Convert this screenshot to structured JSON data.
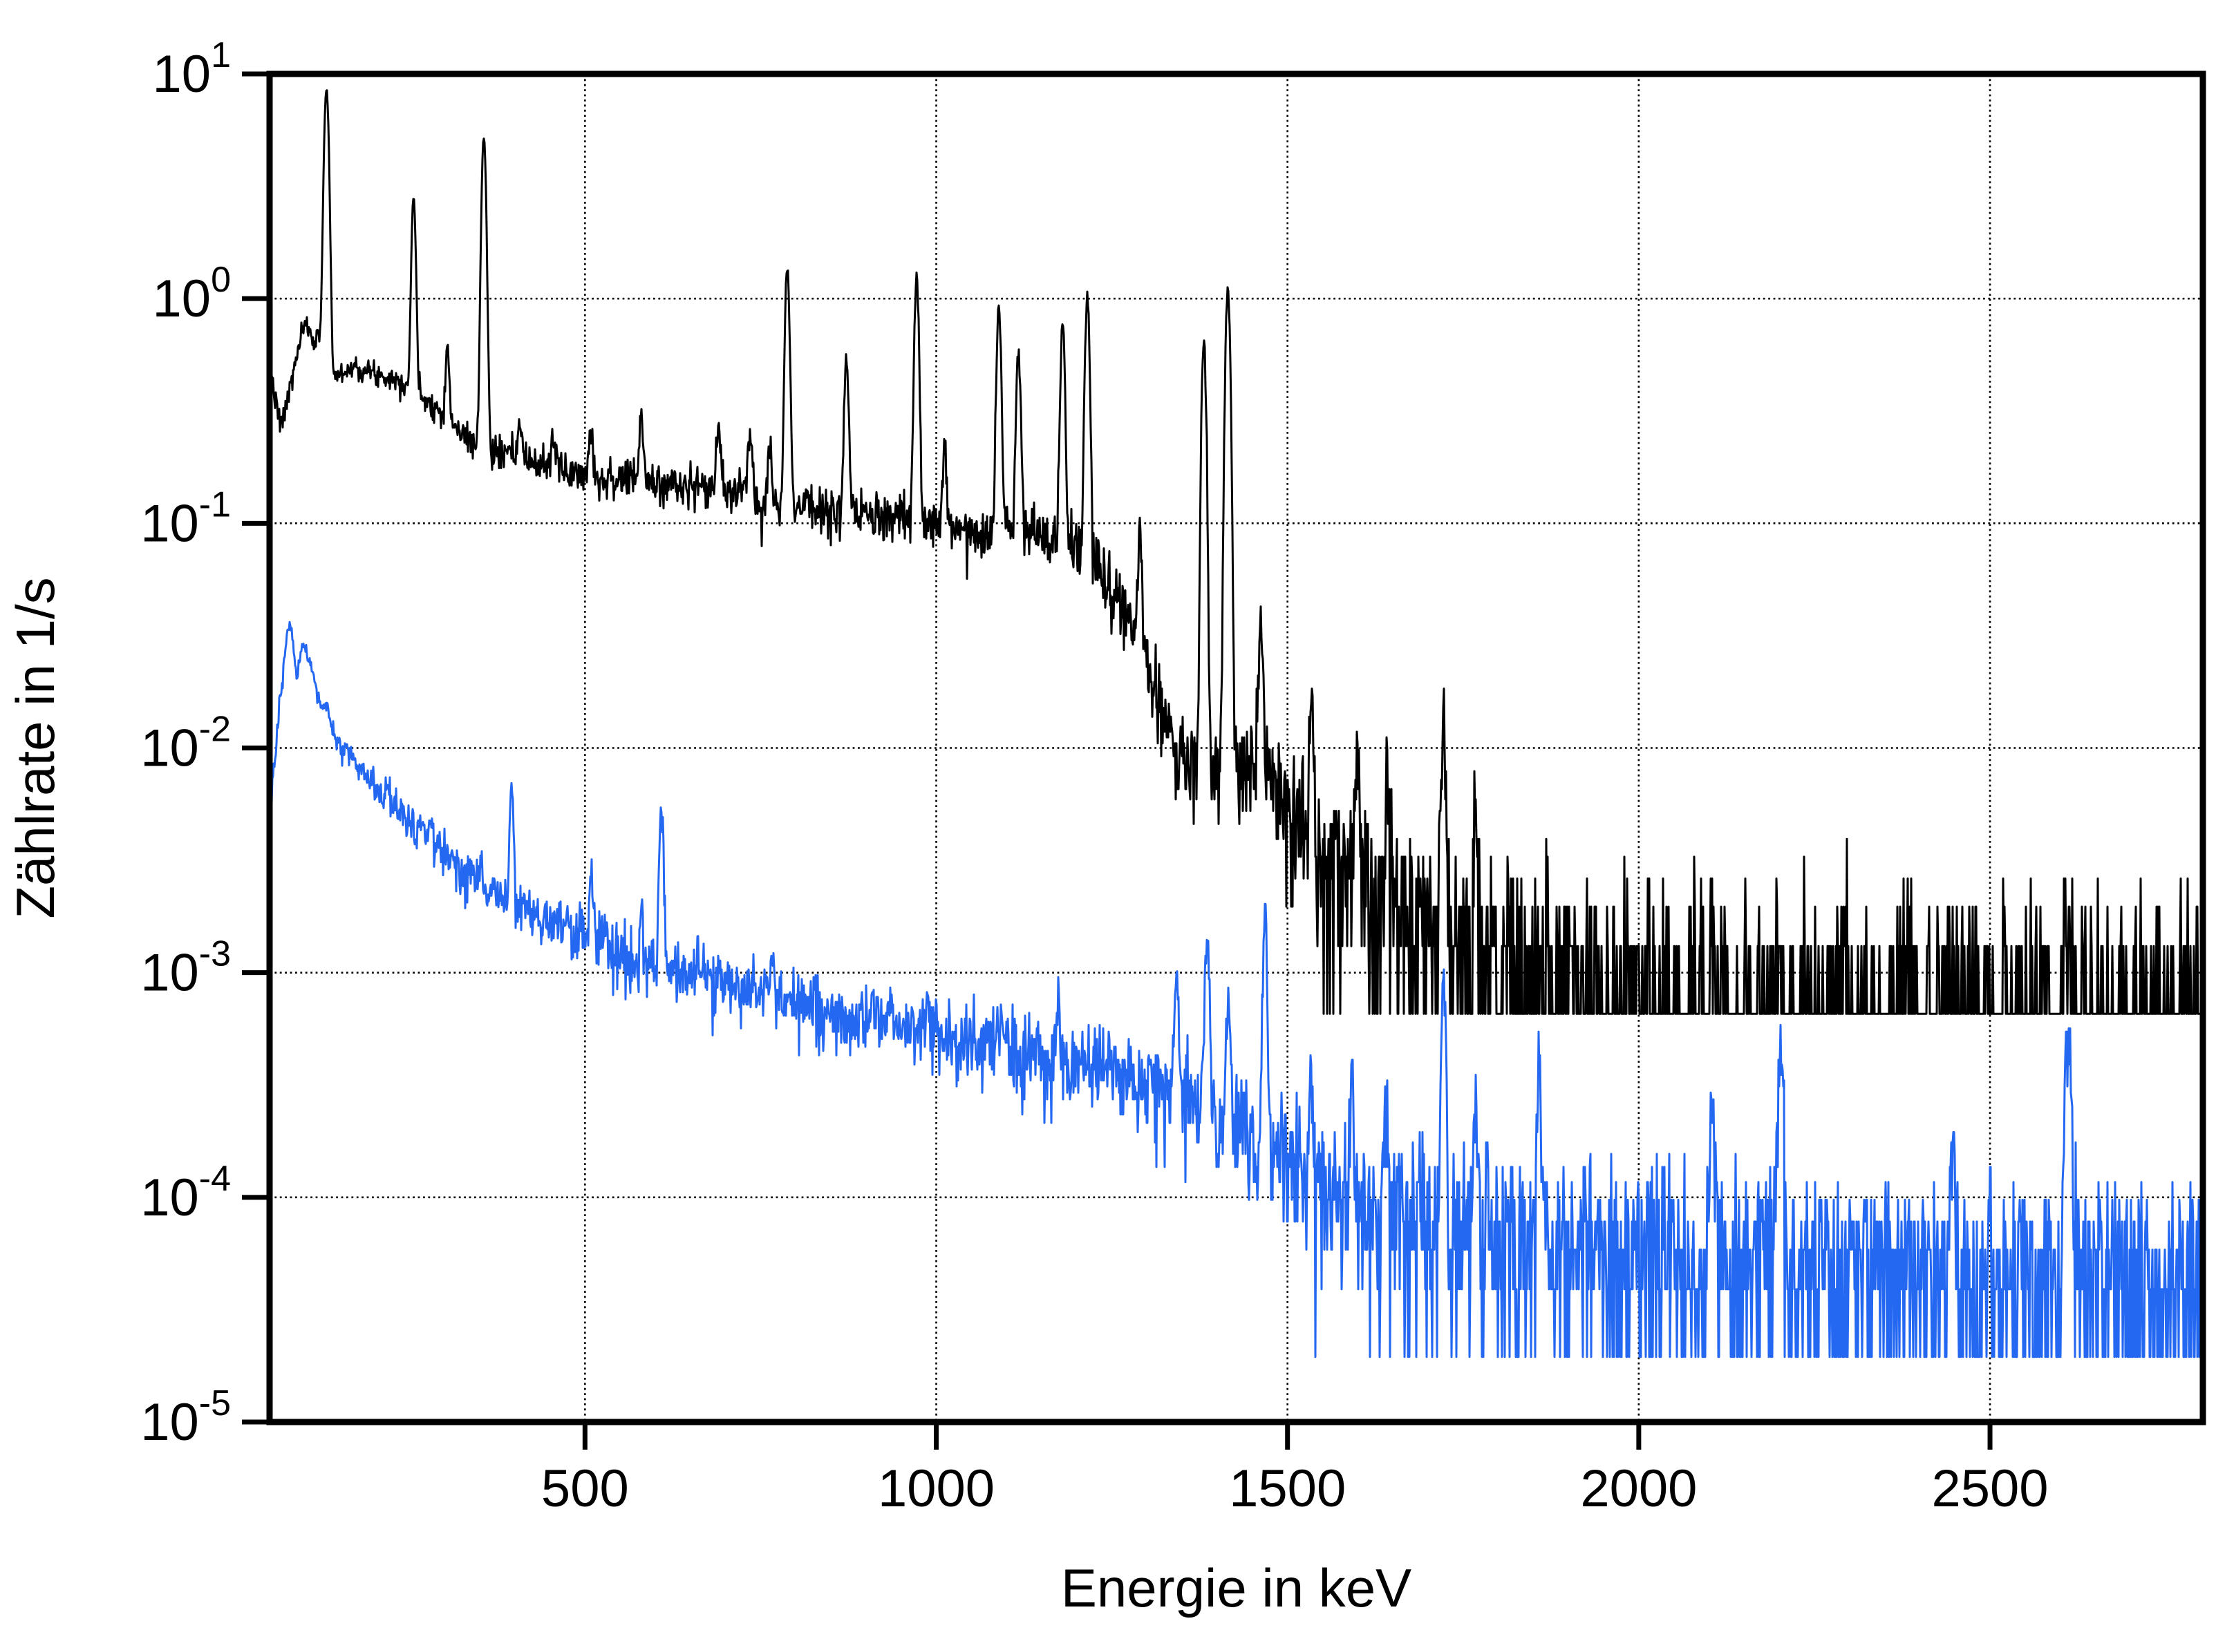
{
  "page": {
    "background": "#ffffff"
  },
  "chart_data": {
    "type": "line",
    "title": "",
    "xlabel": "Energie in keV",
    "ylabel": "Zählrate in 1/s",
    "grid": {
      "style": "dotted",
      "color": "#000000",
      "on": true,
      "legend": "none"
    },
    "x_axis": {
      "scale": "linear",
      "min": 51,
      "max": 2803,
      "ticks": [
        {
          "value": 500,
          "label": "500"
        },
        {
          "value": 1000,
          "label": "1000"
        },
        {
          "value": 1500,
          "label": "1500"
        },
        {
          "value": 2000,
          "label": "2000"
        },
        {
          "value": 2500,
          "label": "2500"
        }
      ]
    },
    "y_axis": {
      "scale": "log",
      "min": 1e-05,
      "max": 10,
      "ticks": [
        {
          "value": 10,
          "base": "10",
          "exponent": "1"
        },
        {
          "value": 1,
          "base": "10",
          "exponent": "0"
        },
        {
          "value": 0.1,
          "base": "10",
          "exponent": "-1"
        },
        {
          "value": 0.01,
          "base": "10",
          "exponent": "-2"
        },
        {
          "value": 0.001,
          "base": "10",
          "exponent": "-3"
        },
        {
          "value": 0.0001,
          "base": "10",
          "exponent": "-4"
        },
        {
          "value": 1e-05,
          "base": "10",
          "exponent": "-5"
        }
      ],
      "gridline_values": [
        1,
        0.1,
        0.01,
        0.001,
        0.0001
      ]
    },
    "series": [
      {
        "id": "black-spectrum",
        "color": "#000000",
        "stroke_width": 3,
        "count_unit": 0.000656,
        "noise_seed": 7,
        "continuum": [
          [
            51,
            0.5
          ],
          [
            55,
            0.44
          ],
          [
            59,
            0.36
          ],
          [
            63,
            0.3
          ],
          [
            66,
            0.27
          ],
          [
            71,
            0.3
          ],
          [
            78,
            0.37
          ],
          [
            85,
            0.47
          ],
          [
            92,
            0.6
          ],
          [
            98,
            0.72
          ],
          [
            104,
            0.76
          ],
          [
            110,
            0.69
          ],
          [
            115,
            0.64
          ],
          [
            121,
            0.68
          ],
          [
            127,
            0.61
          ],
          [
            133,
            0.5
          ],
          [
            140,
            0.455
          ],
          [
            148,
            0.455
          ],
          [
            160,
            0.48
          ],
          [
            172,
            0.5
          ],
          [
            185,
            0.48
          ],
          [
            200,
            0.465
          ],
          [
            215,
            0.455
          ],
          [
            230,
            0.44
          ],
          [
            245,
            0.42
          ],
          [
            262,
            0.385
          ],
          [
            280,
            0.345
          ],
          [
            298,
            0.305
          ],
          [
            316,
            0.265
          ],
          [
            334,
            0.24
          ],
          [
            352,
            0.225
          ],
          [
            370,
            0.21
          ],
          [
            390,
            0.2
          ],
          [
            420,
            0.19
          ],
          [
            450,
            0.18
          ],
          [
            480,
            0.17
          ],
          [
            510,
            0.16
          ],
          [
            545,
            0.158
          ],
          [
            580,
            0.155
          ],
          [
            615,
            0.15
          ],
          [
            650,
            0.147
          ],
          [
            685,
            0.143
          ],
          [
            720,
            0.138
          ],
          [
            755,
            0.13
          ],
          [
            790,
            0.123
          ],
          [
            825,
            0.118
          ],
          [
            860,
            0.113
          ],
          [
            895,
            0.108
          ],
          [
            930,
            0.105
          ],
          [
            965,
            0.102
          ],
          [
            1000,
            0.099
          ],
          [
            1035,
            0.096
          ],
          [
            1070,
            0.094
          ],
          [
            1105,
            0.092
          ],
          [
            1135,
            0.09
          ],
          [
            1160,
            0.088
          ],
          [
            1190,
            0.082
          ],
          [
            1215,
            0.072
          ],
          [
            1240,
            0.058
          ],
          [
            1265,
            0.043
          ],
          [
            1290,
            0.03
          ],
          [
            1315,
            0.018
          ],
          [
            1340,
            0.0105
          ],
          [
            1365,
            0.0085
          ],
          [
            1390,
            0.0075
          ],
          [
            1410,
            0.0075
          ],
          [
            1430,
            0.0088
          ],
          [
            1450,
            0.0095
          ],
          [
            1468,
            0.0085
          ],
          [
            1486,
            0.0065
          ],
          [
            1505,
            0.005
          ],
          [
            1525,
            0.0042
          ],
          [
            1550,
            0.0036
          ],
          [
            1575,
            0.0031
          ],
          [
            1600,
            0.0027
          ],
          [
            1630,
            0.0023
          ],
          [
            1660,
            0.002
          ],
          [
            1700,
            0.0017
          ],
          [
            1740,
            0.00145
          ],
          [
            1780,
            0.00125
          ],
          [
            1820,
            0.0011
          ],
          [
            1860,
            0.00098
          ],
          [
            1900,
            0.00088
          ],
          [
            1950,
            0.0008
          ],
          [
            2000,
            0.00075
          ],
          [
            2100,
            0.0007
          ],
          [
            2300,
            0.00068
          ],
          [
            2803,
            0.00066
          ]
        ],
        "peaks": [
          [
            132,
            8.0,
            3.0
          ],
          [
            256,
            2.45,
            2.6
          ],
          [
            304,
            0.32,
            2.4
          ],
          [
            356,
            5.0,
            2.8
          ],
          [
            407,
            0.09,
            2.5
          ],
          [
            455,
            0.07,
            2.5
          ],
          [
            508,
            0.1,
            3.0
          ],
          [
            580,
            0.145,
            2.6
          ],
          [
            690,
            0.13,
            2.6
          ],
          [
            735,
            0.12,
            2.6
          ],
          [
            763,
            0.09,
            2.5
          ],
          [
            788,
            1.23,
            2.8
          ],
          [
            872,
            0.41,
            2.7
          ],
          [
            972,
            1.15,
            2.8
          ],
          [
            1012,
            0.12,
            2.5
          ],
          [
            1089,
            0.86,
            2.7
          ],
          [
            1117,
            0.5,
            2.7
          ],
          [
            1180,
            0.72,
            2.7
          ],
          [
            1215,
            1.0,
            2.7
          ],
          [
            1290,
            0.06,
            2.6
          ],
          [
            1381,
            0.63,
            2.7
          ],
          [
            1415,
            1.1,
            2.9
          ],
          [
            1462,
            0.03,
            2.6
          ],
          [
            1534,
            0.012,
            2.6
          ],
          [
            1600,
            0.0075,
            2.6
          ],
          [
            1642,
            0.0045,
            2.6
          ],
          [
            1722,
            0.0115,
            2.8
          ],
          [
            1769,
            0.003,
            2.6
          ],
          [
            2105,
            0.0013,
            3.0
          ],
          [
            2203,
            0.0012,
            3.0
          ],
          [
            2611,
            0.00085,
            5.0
          ]
        ]
      },
      {
        "id": "blue-spectrum",
        "color": "#2468f2",
        "stroke_width": 3,
        "count_unit": 1.95e-05,
        "noise_seed": 13,
        "continuum": [
          [
            51,
            0.005
          ],
          [
            56,
            0.0075
          ],
          [
            62,
            0.012
          ],
          [
            68,
            0.019
          ],
          [
            74,
            0.028
          ],
          [
            79,
            0.0362
          ],
          [
            83,
            0.033
          ],
          [
            87,
            0.0235
          ],
          [
            90,
            0.0208
          ],
          [
            94,
            0.024
          ],
          [
            98,
            0.0289
          ],
          [
            102,
            0.0272
          ],
          [
            107,
            0.0238
          ],
          [
            113,
            0.0205
          ],
          [
            120,
            0.0172
          ],
          [
            128,
            0.0147
          ],
          [
            136,
            0.0128
          ],
          [
            145,
            0.0111
          ],
          [
            155,
            0.0099
          ],
          [
            167,
            0.0089
          ],
          [
            180,
            0.0079
          ],
          [
            194,
            0.007
          ],
          [
            210,
            0.0063
          ],
          [
            228,
            0.0056
          ],
          [
            247,
            0.0049
          ],
          [
            267,
            0.0042
          ],
          [
            288,
            0.0036
          ],
          [
            310,
            0.0031
          ],
          [
            334,
            0.00272
          ],
          [
            360,
            0.00238
          ],
          [
            390,
            0.00207
          ],
          [
            425,
            0.0018
          ],
          [
            465,
            0.00158
          ],
          [
            509,
            0.00138
          ],
          [
            550,
            0.00122
          ],
          [
            592,
            0.0011
          ],
          [
            635,
            0.001
          ],
          [
            680,
            0.00092
          ],
          [
            725,
            0.00085
          ],
          [
            770,
            0.00078
          ],
          [
            815,
            0.00072
          ],
          [
            860,
            0.00066
          ],
          [
            905,
            0.00061
          ],
          [
            950,
            0.00057
          ],
          [
            1000,
            0.00053
          ],
          [
            1050,
            0.00049
          ],
          [
            1100,
            0.00045
          ],
          [
            1150,
            0.000415
          ],
          [
            1200,
            0.000385
          ],
          [
            1250,
            0.000355
          ],
          [
            1300,
            0.000325
          ],
          [
            1345,
            0.000295
          ],
          [
            1385,
            0.000265
          ],
          [
            1415,
            0.000235
          ],
          [
            1445,
            0.000205
          ],
          [
            1470,
            0.000175
          ],
          [
            1495,
            0.00015
          ],
          [
            1520,
            0.00013
          ],
          [
            1545,
            0.000114
          ],
          [
            1575,
            0.000101
          ],
          [
            1610,
            9.1e-05
          ],
          [
            1655,
            8.3e-05
          ],
          [
            1710,
            7.6e-05
          ],
          [
            1775,
            7e-05
          ],
          [
            1850,
            6.6e-05
          ],
          [
            1935,
            6.2e-05
          ],
          [
            2030,
            5.8e-05
          ],
          [
            2150,
            5.5e-05
          ],
          [
            2300,
            5.2e-05
          ],
          [
            2450,
            4.9e-05
          ],
          [
            2620,
            4.7e-05
          ],
          [
            2803,
            4.6e-05
          ]
        ],
        "peaks": [
          [
            133,
            0.0018,
            2.5
          ],
          [
            160,
            0.0008,
            2.5
          ],
          [
            218,
            0.0009,
            2.5
          ],
          [
            281,
            0.0009,
            2.5
          ],
          [
            352,
            0.0007,
            2.5
          ],
          [
            396,
            0.0048,
            2.5
          ],
          [
            509,
            0.0012,
            3.0
          ],
          [
            581,
            0.0005,
            2.5
          ],
          [
            609,
            0.0046,
            2.5
          ],
          [
            662,
            0.0003,
            2.5
          ],
          [
            768,
            0.0004,
            2.5
          ],
          [
            911,
            0.00022,
            2.5
          ],
          [
            1000,
            0.00018,
            2.5
          ],
          [
            1092,
            0.00015,
            2.5
          ],
          [
            1173,
            0.0003,
            2.5
          ],
          [
            1238,
            0.0001,
            2.5
          ],
          [
            1342,
            0.0007,
            2.5
          ],
          [
            1386,
            0.0013,
            2.5
          ],
          [
            1416,
            0.0005,
            2.5
          ],
          [
            1468,
            0.00165,
            2.6
          ],
          [
            1534,
            0.0002,
            2.5
          ],
          [
            1592,
            0.00028,
            2.5
          ],
          [
            1640,
            0.00018,
            2.5
          ],
          [
            1722,
            0.00083,
            2.6
          ],
          [
            1767,
            0.0002,
            2.5
          ],
          [
            1858,
            0.00035,
            2.5
          ],
          [
            2104,
            0.0002,
            3.0
          ],
          [
            2202,
            0.0005,
            3.0
          ],
          [
            2447,
            0.00012,
            3.0
          ],
          [
            2611,
            0.00058,
            3.5
          ]
        ]
      }
    ]
  }
}
